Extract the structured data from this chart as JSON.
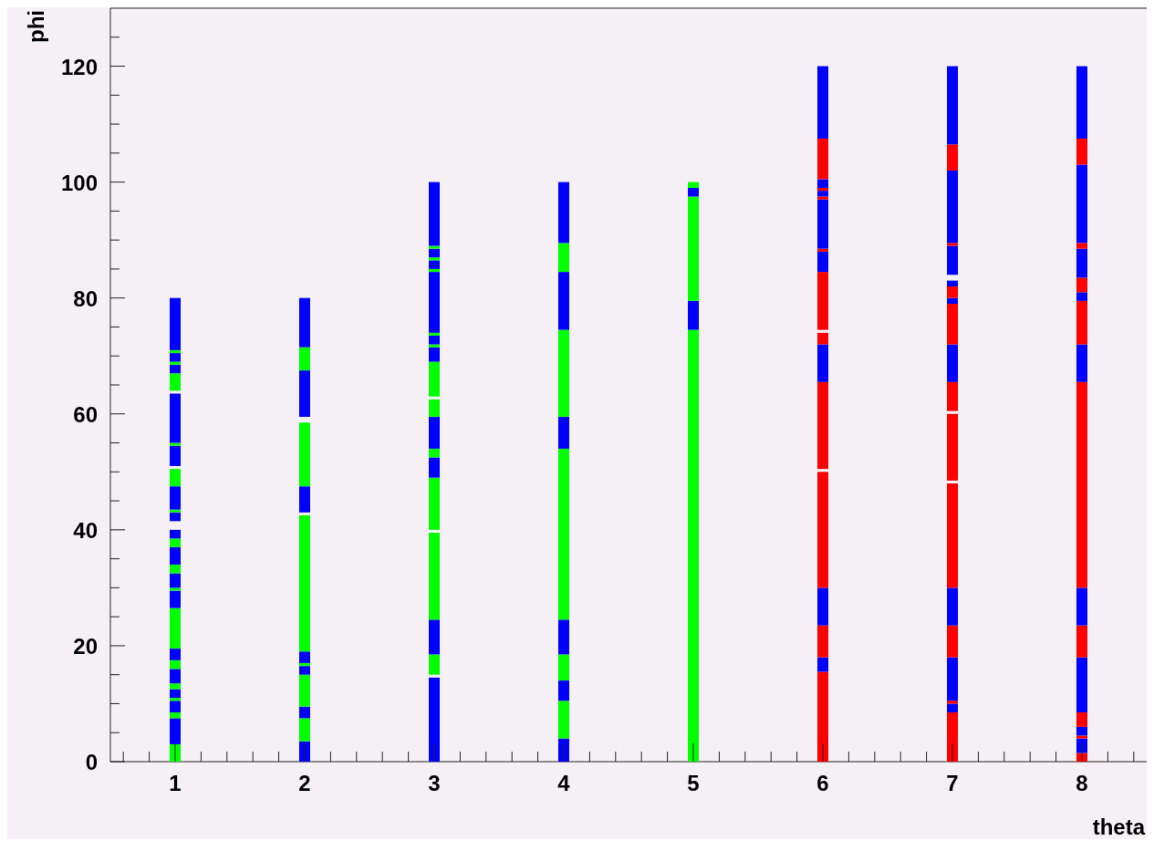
{
  "chart_data": {
    "type": "bar",
    "xlabel": "theta",
    "ylabel": "phi",
    "xlim": [
      0.5,
      8.5
    ],
    "ylim": [
      0,
      130
    ],
    "x": [
      1,
      2,
      3,
      4,
      5,
      6,
      7,
      8
    ],
    "xticks": [
      {
        "value": 0.6,
        "label": null
      },
      {
        "value": 0.8,
        "label": null
      },
      1,
      {
        "value": 1.2,
        "label": null
      },
      {
        "value": 1.4,
        "label": null
      },
      {
        "value": 1.6,
        "label": null
      },
      {
        "value": 1.8,
        "label": null
      },
      2,
      {
        "value": 2.2,
        "label": null
      },
      {
        "value": 2.4,
        "label": null
      },
      {
        "value": 2.6,
        "label": null
      },
      {
        "value": 2.8,
        "label": null
      },
      3,
      {
        "value": 3.2,
        "label": null
      },
      {
        "value": 3.4,
        "label": null
      },
      {
        "value": 3.6,
        "label": null
      },
      {
        "value": 3.8,
        "label": null
      },
      4,
      {
        "value": 4.2,
        "label": null
      },
      {
        "value": 4.4,
        "label": null
      },
      {
        "value": 4.6,
        "label": null
      },
      {
        "value": 4.8,
        "label": null
      },
      5,
      {
        "value": 5.2,
        "label": null
      },
      {
        "value": 5.4,
        "label": null
      },
      {
        "value": 5.6,
        "label": null
      },
      {
        "value": 5.8,
        "label": null
      },
      6,
      {
        "value": 6.2,
        "label": null
      },
      {
        "value": 6.4,
        "label": null
      },
      {
        "value": 6.6,
        "label": null
      },
      {
        "value": 6.8,
        "label": null
      },
      7,
      {
        "value": 7.2,
        "label": null
      },
      {
        "value": 7.4,
        "label": null
      },
      {
        "value": 7.6,
        "label": null
      },
      {
        "value": 7.8,
        "label": null
      },
      8,
      {
        "value": 8.2,
        "label": null
      },
      {
        "value": 8.4,
        "label": null
      }
    ],
    "yticks": [
      0,
      {
        "value": 5,
        "label": null
      },
      {
        "value": 10,
        "label": null
      },
      {
        "value": 15,
        "label": null
      },
      20,
      {
        "value": 25,
        "label": null
      },
      {
        "value": 30,
        "label": null
      },
      {
        "value": 35,
        "label": null
      },
      40,
      {
        "value": 45,
        "label": null
      },
      {
        "value": 50,
        "label": null
      },
      {
        "value": 55,
        "label": null
      },
      60,
      {
        "value": 65,
        "label": null
      },
      {
        "value": 70,
        "label": null
      },
      {
        "value": 75,
        "label": null
      },
      80,
      {
        "value": 85,
        "label": null
      },
      {
        "value": 90,
        "label": null
      },
      {
        "value": 95,
        "label": null
      },
      100,
      {
        "value": 105,
        "label": null
      },
      {
        "value": 110,
        "label": null
      },
      {
        "value": 115,
        "label": null
      },
      120,
      {
        "value": 125,
        "label": null
      }
    ],
    "series": [
      {
        "base": [
          0,
          0,
          0,
          0,
          0,
          0,
          0,
          0
        ],
        "values": [
          3,
          3.5,
          14.5,
          4,
          74.5,
          15.5,
          8.5,
          1.5
        ],
        "colors": [
          "#00ff00",
          "#0000ff",
          "#0000ff",
          "#0000ff",
          "#00ff00",
          "#ff0000",
          "#ff0000",
          "#ff0000"
        ]
      },
      {
        "base": [
          3,
          3.5,
          15,
          4,
          74.5,
          15.5,
          8.5,
          1.5
        ],
        "values": [
          4.5,
          4,
          3.5,
          6.5,
          5,
          2.5,
          1.5,
          2.5
        ],
        "colors": [
          "#0000ff",
          "#00ff00",
          "#00ff00",
          "#00ff00",
          "#0000ff",
          "#0000ff",
          "#0000ff",
          "#0000ff"
        ]
      },
      {
        "base": [
          7.5,
          7.5,
          18.5,
          10.5,
          79.5,
          18,
          10,
          4
        ],
        "values": [
          1,
          2,
          6,
          3.5,
          18,
          5.5,
          0.5,
          0.5
        ],
        "colors": [
          "#00ff00",
          "#0000ff",
          "#0000ff",
          "#0000ff",
          "#00ff00",
          "#ff0000",
          "#ff0000",
          "#ff0000"
        ]
      },
      {
        "base": [
          8.5,
          9.5,
          24.5,
          14,
          97.5,
          23.5,
          10.5,
          4.5
        ],
        "values": [
          2,
          5.5,
          15,
          4.5,
          1.5,
          6.5,
          7.5,
          1.5
        ],
        "colors": [
          "#0000ff",
          "#00ff00",
          "#00ff00",
          "#00ff00",
          "#0000ff",
          "#0000ff",
          "#0000ff",
          "#0000ff"
        ]
      },
      {
        "base": [
          10.5,
          15,
          40,
          18.5,
          99,
          30,
          18,
          6
        ],
        "values": [
          0.5,
          1.5,
          9,
          6,
          1,
          20,
          5.5,
          2.5
        ],
        "colors": [
          "#00ff00",
          "#0000ff",
          "#00ff00",
          "#0000ff",
          "#00ff00",
          "#ff0000",
          "#ff0000",
          "#ff0000"
        ]
      },
      {
        "base": [
          11,
          16.5,
          49,
          24.5,
          null,
          50.5,
          23.5,
          8.5
        ],
        "values": [
          1.5,
          0.5,
          3.5,
          29.5,
          null,
          15,
          6.5,
          9.5
        ],
        "colors": [
          "#0000ff",
          "#00ff00",
          "#0000ff",
          "#00ff00",
          null,
          "#ff0000",
          "#0000ff",
          "#0000ff"
        ]
      },
      {
        "base": [
          12.5,
          17,
          52.5,
          54,
          null,
          65.5,
          30,
          18
        ],
        "values": [
          1,
          2,
          1.5,
          5.5,
          null,
          6.5,
          18,
          5.5
        ],
        "colors": [
          "#00ff00",
          "#0000ff",
          "#00ff00",
          "#0000ff",
          null,
          "#0000ff",
          "#ff0000",
          "#ff0000"
        ]
      },
      {
        "base": [
          13.5,
          19,
          54,
          59.5,
          null,
          72,
          48.5,
          23.5
        ],
        "values": [
          2.5,
          23.5,
          5.5,
          15,
          null,
          2,
          11.5,
          6.5
        ],
        "colors": [
          "#0000ff",
          "#00ff00",
          "#0000ff",
          "#00ff00",
          null,
          "#ff0000",
          "#ff0000",
          "#0000ff"
        ]
      },
      {
        "base": [
          16,
          43,
          59.5,
          74.5,
          null,
          74.5,
          60.5,
          30
        ],
        "values": [
          1.5,
          4.5,
          3,
          10,
          null,
          10,
          5,
          35.5
        ],
        "colors": [
          "#00ff00",
          "#0000ff",
          "#00ff00",
          "#0000ff",
          null,
          "#ff0000",
          "#ff0000",
          "#ff0000"
        ]
      },
      {
        "base": [
          17.5,
          47.5,
          63,
          84.5,
          null,
          84.5,
          65.5,
          65.5
        ],
        "values": [
          2,
          11,
          6,
          5,
          null,
          3.5,
          6.5,
          6.5
        ],
        "colors": [
          "#0000ff",
          "#00ff00",
          "#00ff00",
          "#00ff00",
          null,
          "#0000ff",
          "#0000ff",
          "#0000ff"
        ]
      },
      {
        "base": [
          19.5,
          59.5,
          69,
          89.5,
          null,
          88,
          72,
          72
        ],
        "values": [
          7,
          8,
          2.5,
          10.5,
          null,
          0.5,
          7,
          7.5
        ],
        "colors": [
          "#00ff00",
          "#0000ff",
          "#0000ff",
          "#0000ff",
          null,
          "#ff0000",
          "#ff0000",
          "#ff0000"
        ]
      },
      {
        "base": [
          26.5,
          67.5,
          71.5,
          null,
          null,
          88.5,
          79,
          79.5
        ],
        "values": [
          3,
          4,
          0.5,
          null,
          null,
          8.5,
          1,
          1.5
        ],
        "colors": [
          "#0000ff",
          "#00ff00",
          "#00ff00",
          null,
          null,
          "#0000ff",
          "#0000ff",
          "#0000ff"
        ]
      },
      {
        "base": [
          29.5,
          71.5,
          72,
          null,
          null,
          97,
          80,
          81
        ],
        "values": [
          0.5,
          8.5,
          1.5,
          null,
          null,
          0.5,
          2,
          2.5
        ],
        "colors": [
          "#00ff00",
          "#0000ff",
          "#0000ff",
          null,
          null,
          "#ff0000",
          "#ff0000",
          "#ff0000"
        ]
      },
      {
        "base": [
          30,
          null,
          73.5,
          null,
          null,
          97.5,
          82,
          83.5
        ],
        "values": [
          2.5,
          null,
          0.5,
          null,
          null,
          1,
          1,
          5
        ],
        "colors": [
          "#0000ff",
          null,
          "#00ff00",
          null,
          null,
          "#0000ff",
          "#0000ff",
          "#0000ff"
        ]
      },
      {
        "base": [
          32.5,
          null,
          74,
          null,
          null,
          98.5,
          84,
          88.5
        ],
        "values": [
          1.5,
          null,
          10.5,
          null,
          null,
          0.5,
          5,
          1
        ],
        "colors": [
          "#00ff00",
          null,
          "#0000ff",
          null,
          null,
          "#ff0000",
          "#0000ff",
          "#ff0000"
        ]
      },
      {
        "base": [
          34,
          null,
          84.5,
          null,
          null,
          99,
          89,
          89.5
        ],
        "values": [
          3,
          null,
          0.5,
          null,
          null,
          1.5,
          0.5,
          13.5
        ],
        "colors": [
          "#0000ff",
          null,
          "#00ff00",
          null,
          null,
          "#0000ff",
          "#ff0000",
          "#0000ff"
        ]
      },
      {
        "base": [
          37,
          null,
          85,
          null,
          null,
          100.5,
          89.5,
          103
        ],
        "values": [
          1.5,
          null,
          1.5,
          null,
          null,
          7,
          12.5,
          4.5
        ],
        "colors": [
          "#00ff00",
          null,
          "#0000ff",
          null,
          null,
          "#ff0000",
          "#0000ff",
          "#ff0000"
        ]
      },
      {
        "base": [
          38.5,
          null,
          86.5,
          null,
          null,
          107.5,
          102,
          107.5
        ],
        "values": [
          1.5,
          null,
          0.5,
          null,
          null,
          12.5,
          4.5,
          12.5
        ],
        "colors": [
          "#0000ff",
          null,
          "#00ff00",
          null,
          null,
          "#0000ff",
          "#ff0000",
          "#0000ff"
        ]
      },
      {
        "base": [
          41.5,
          null,
          87,
          null,
          null,
          null,
          106.5,
          null
        ],
        "values": [
          1.5,
          null,
          1.5,
          null,
          null,
          null,
          13.5,
          null
        ],
        "colors": [
          "#0000ff",
          null,
          "#0000ff",
          null,
          null,
          null,
          "#0000ff",
          null
        ]
      },
      {
        "base": [
          43,
          null,
          88.5,
          null,
          null,
          null,
          null,
          null
        ],
        "values": [
          0.5,
          null,
          0.5,
          null,
          null,
          null,
          null,
          null
        ],
        "colors": [
          "#00ff00",
          null,
          "#00ff00",
          null,
          null,
          null,
          null,
          null
        ]
      },
      {
        "base": [
          43.5,
          null,
          89,
          null,
          null,
          null,
          null,
          null
        ],
        "values": [
          4,
          null,
          11,
          null,
          null,
          null,
          null,
          null
        ],
        "colors": [
          "#0000ff",
          null,
          "#0000ff",
          null,
          null,
          null,
          null,
          null
        ]
      },
      {
        "base": [
          47.5,
          null,
          null,
          null,
          null,
          null,
          null,
          null
        ],
        "values": [
          3,
          null,
          null,
          null,
          null,
          null,
          null,
          null
        ],
        "colors": [
          "#00ff00",
          null,
          null,
          null,
          null,
          null,
          null,
          null
        ]
      },
      {
        "base": [
          51,
          null,
          null,
          null,
          null,
          null,
          null,
          null
        ],
        "values": [
          3.5,
          null,
          null,
          null,
          null,
          null,
          null,
          null
        ],
        "colors": [
          "#0000ff",
          null,
          null,
          null,
          null,
          null,
          null,
          null
        ]
      },
      {
        "base": [
          54.5,
          null,
          null,
          null,
          null,
          null,
          null,
          null
        ],
        "values": [
          0.5,
          null,
          null,
          null,
          null,
          null,
          null,
          null
        ],
        "colors": [
          "#00ff00",
          null,
          null,
          null,
          null,
          null,
          null,
          null
        ]
      },
      {
        "base": [
          55,
          null,
          null,
          null,
          null,
          null,
          null,
          null
        ],
        "values": [
          8.5,
          null,
          null,
          null,
          null,
          null,
          null,
          null
        ],
        "colors": [
          "#0000ff",
          null,
          null,
          null,
          null,
          null,
          null,
          null
        ]
      },
      {
        "base": [
          64,
          null,
          null,
          null,
          null,
          null,
          null,
          null
        ],
        "values": [
          3,
          null,
          null,
          null,
          null,
          null,
          null,
          null
        ],
        "colors": [
          "#00ff00",
          null,
          null,
          null,
          null,
          null,
          null,
          null
        ]
      },
      {
        "base": [
          67,
          null,
          null,
          null,
          null,
          null,
          null,
          null
        ],
        "values": [
          1.5,
          null,
          null,
          null,
          null,
          null,
          null,
          null
        ],
        "colors": [
          "#0000ff",
          null,
          null,
          null,
          null,
          null,
          null,
          null
        ]
      },
      {
        "base": [
          68.5,
          null,
          null,
          null,
          null,
          null,
          null,
          null
        ],
        "values": [
          0.5,
          null,
          null,
          null,
          null,
          null,
          null,
          null
        ],
        "colors": [
          "#00ff00",
          null,
          null,
          null,
          null,
          null,
          null,
          null
        ]
      },
      {
        "base": [
          69,
          null,
          null,
          null,
          null,
          null,
          null,
          null
        ],
        "values": [
          1.5,
          null,
          null,
          null,
          null,
          null,
          null,
          null
        ],
        "colors": [
          "#0000ff",
          null,
          null,
          null,
          null,
          null,
          null,
          null
        ]
      },
      {
        "base": [
          70.5,
          null,
          null,
          null,
          null,
          null,
          null,
          null
        ],
        "values": [
          0.5,
          null,
          null,
          null,
          null,
          null,
          null,
          null
        ],
        "colors": [
          "#00ff00",
          null,
          null,
          null,
          null,
          null,
          null,
          null
        ]
      },
      {
        "base": [
          71,
          null,
          null,
          null,
          null,
          null,
          null,
          null
        ],
        "values": [
          9,
          null,
          null,
          null,
          null,
          null,
          null,
          null
        ],
        "colors": [
          "#0000ff",
          null,
          null,
          null,
          null,
          null,
          null,
          null
        ]
      }
    ]
  }
}
